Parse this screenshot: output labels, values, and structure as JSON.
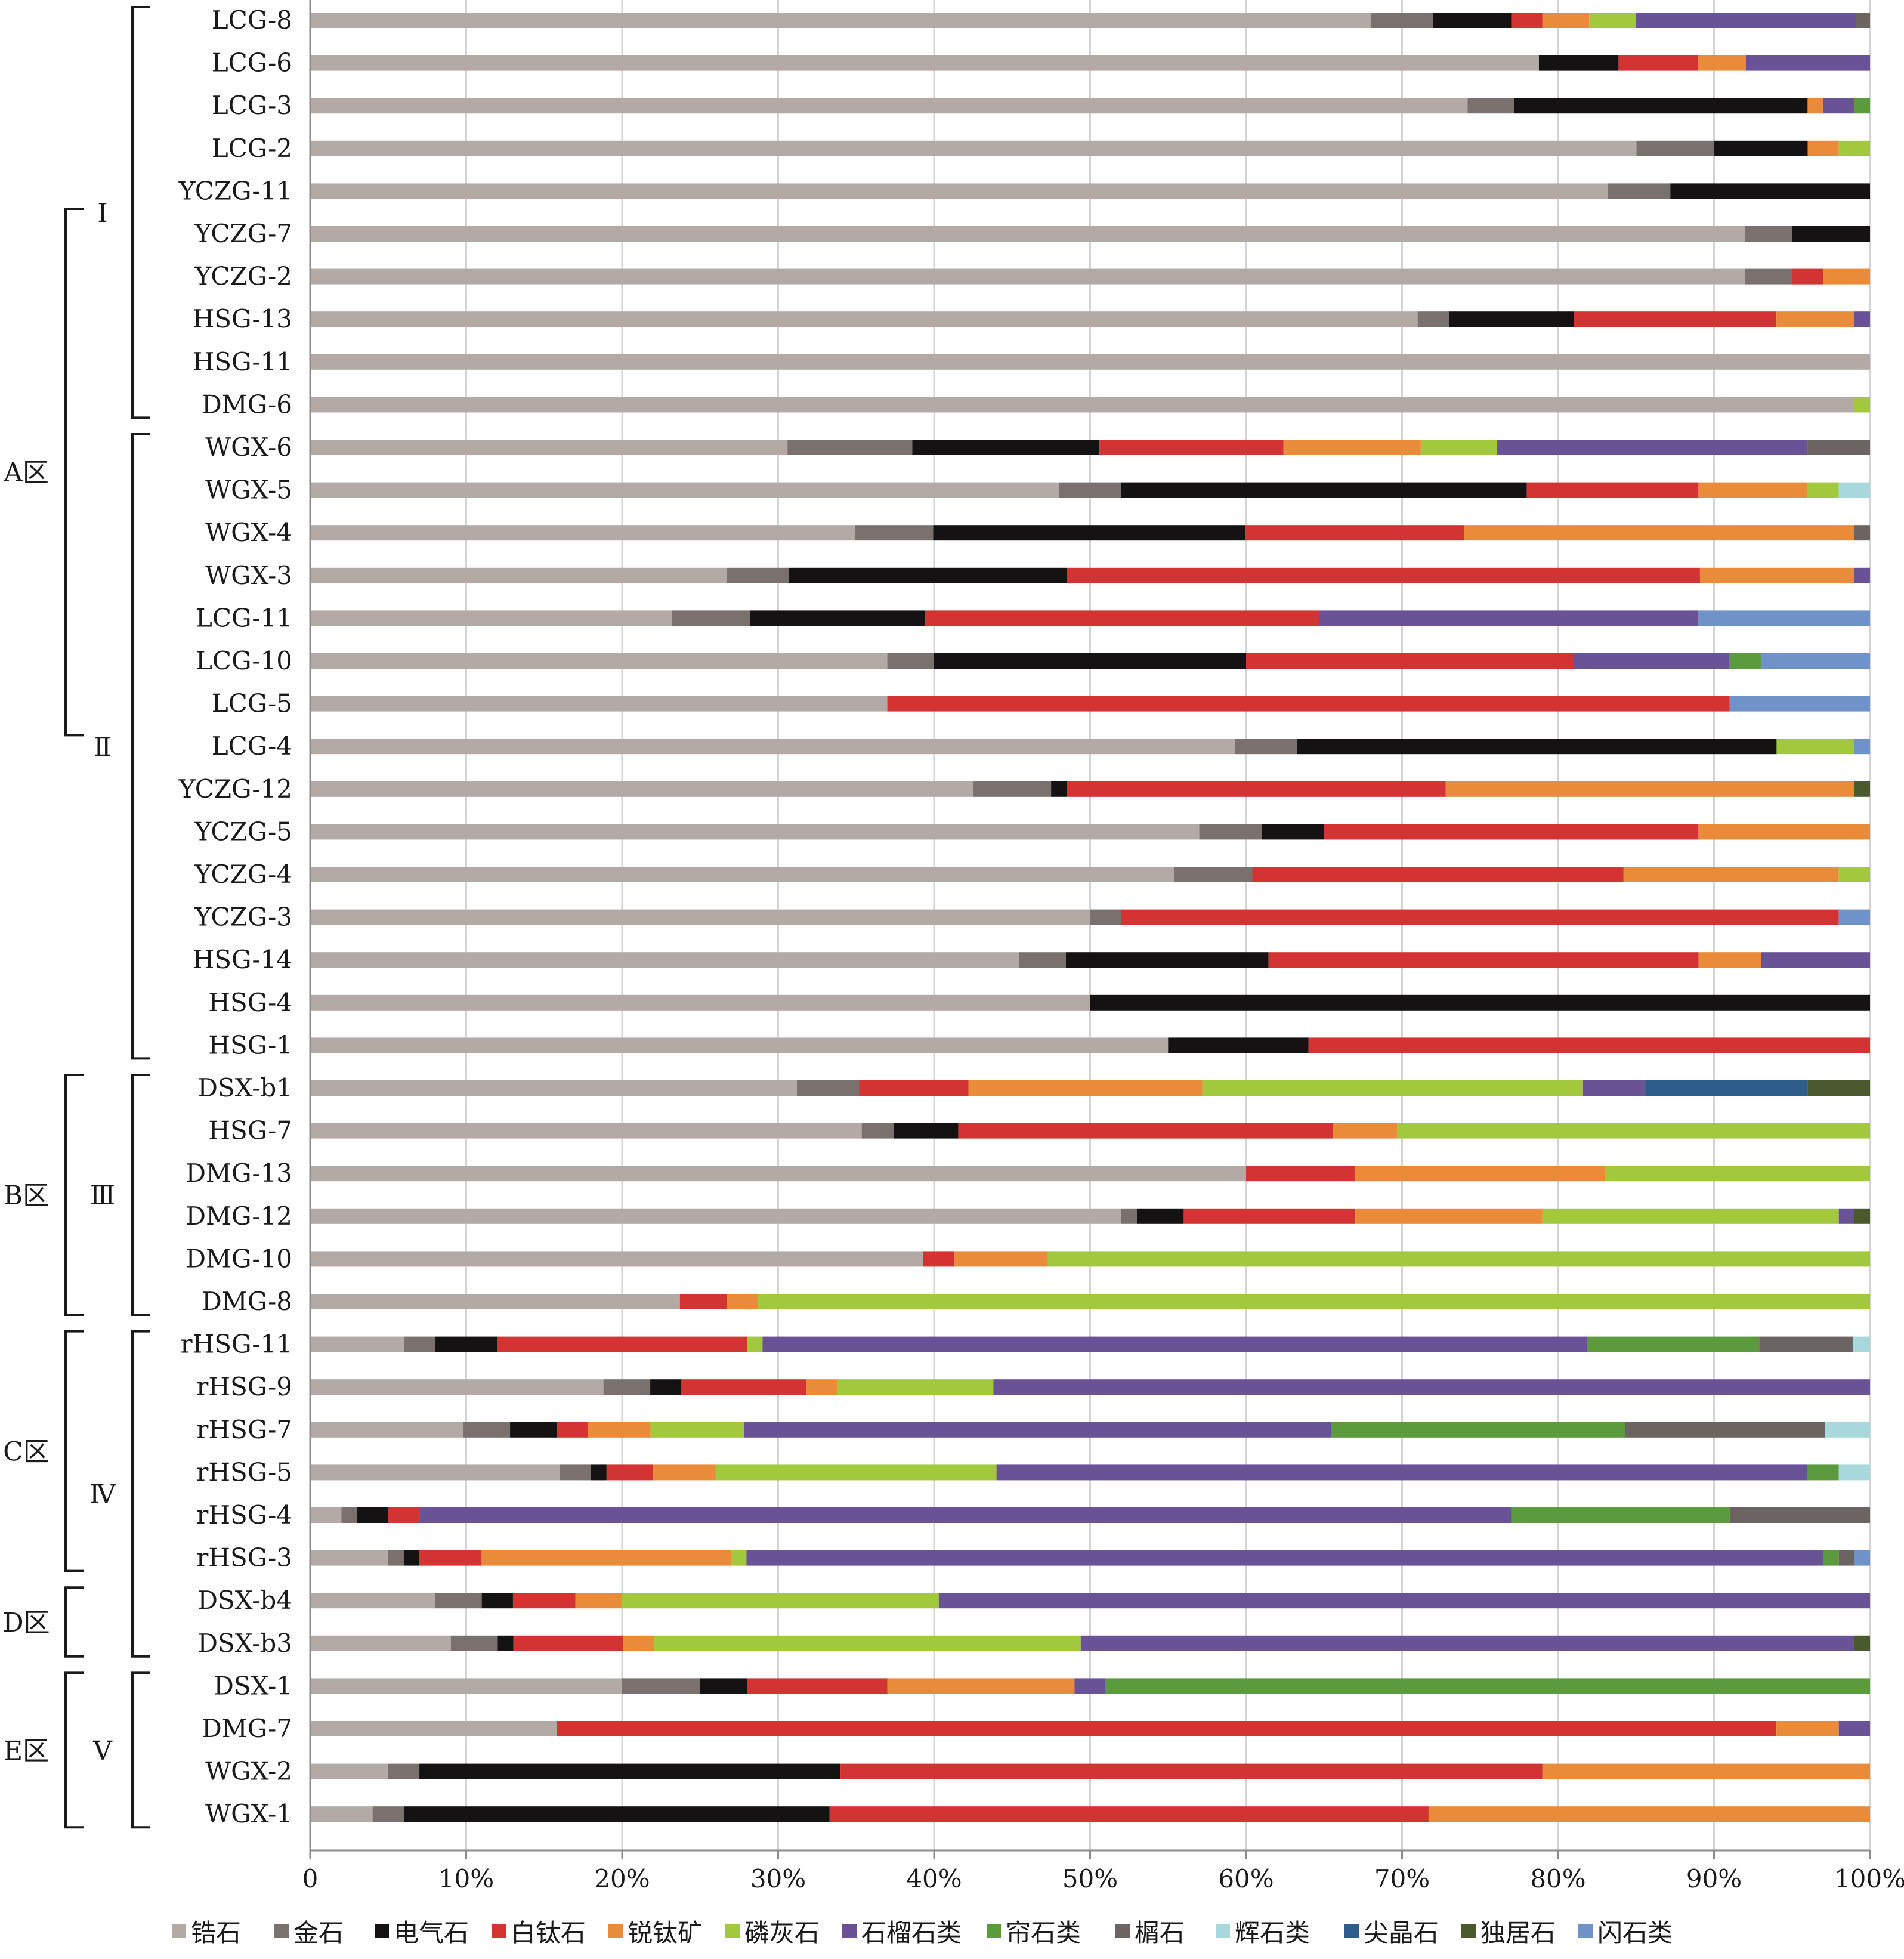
{
  "chart_data": {
    "type": "bar",
    "orientation": "horizontal",
    "stacked": "percent",
    "categories": [
      "LCG-8",
      "LCG-6",
      "LCG-3",
      "LCG-2",
      "YCZG-11",
      "YCZG-7",
      "YCZG-2",
      "HSG-13",
      "HSG-11",
      "DMG-6",
      "WGX-6",
      "WGX-5",
      "WGX-4",
      "WGX-3",
      "LCG-11",
      "LCG-10",
      "LCG-5",
      "LCG-4",
      "YCZG-12",
      "YCZG-5",
      "YCZG-4",
      "YCZG-3",
      "HSG-14",
      "HSG-4",
      "HSG-1",
      "DSX-b1",
      "HSG-7",
      "DMG-13",
      "DMG-12",
      "DMG-10",
      "DMG-8",
      "rHSG-11",
      "rHSG-9",
      "rHSG-7",
      "rHSG-5",
      "rHSG-4",
      "rHSG-3",
      "DSX-b4",
      "DSX-b3",
      "DSX-1",
      "DMG-7",
      "WGX-2",
      "WGX-1"
    ],
    "xlim": [
      0,
      100
    ],
    "xticks": [
      "0",
      "10%",
      "20%",
      "30%",
      "40%",
      "50%",
      "60%",
      "70%",
      "80%",
      "90%",
      "100%"
    ],
    "grid": "vertical",
    "legend_position": "bottom",
    "series": [
      {
        "name": "锆石",
        "color": "#b3aaa6",
        "values": [
          68,
          77.2,
          74.2,
          85.2,
          83.2,
          92,
          92,
          71,
          100,
          99,
          30.6,
          48,
          34.9,
          26.7,
          23.2,
          37,
          37,
          59.4,
          42.5,
          57,
          55.4,
          50,
          45.5,
          50,
          55,
          31.2,
          34.3,
          60,
          52,
          39.3,
          23.7,
          6,
          18.8,
          9.8,
          16,
          2,
          5,
          8,
          9,
          20,
          15.8,
          5,
          4
        ]
      },
      {
        "name": "金石",
        "color": "#7a706d",
        "values": [
          4,
          0,
          3,
          5,
          4,
          3,
          3,
          2,
          0,
          0,
          8,
          4,
          5,
          4,
          5,
          3,
          0,
          4,
          5,
          4,
          5,
          2,
          3,
          0,
          0,
          4,
          2,
          0,
          1,
          0,
          0,
          2,
          3,
          3,
          2,
          1,
          1,
          3,
          3,
          5,
          0,
          2,
          2
        ]
      },
      {
        "name": "电气石",
        "color": "#141212",
        "values": [
          5,
          5,
          18.8,
          6,
          12.8,
          5,
          0,
          8,
          0,
          0,
          12,
          26,
          20,
          17.8,
          11.2,
          20,
          0,
          30.8,
          1,
          4,
          0,
          0,
          13,
          50,
          9,
          0,
          4,
          0,
          3,
          0,
          0,
          4,
          2,
          3,
          1,
          2,
          1,
          2,
          1,
          3,
          0,
          27,
          27.3
        ]
      },
      {
        "name": "白钛石",
        "color": "#d33332",
        "values": [
          2,
          5,
          0,
          0,
          0,
          0,
          2,
          13,
          0,
          0,
          11.8,
          11,
          14,
          40.6,
          25.3,
          21,
          54,
          0,
          24.3,
          24,
          23.8,
          46,
          27.6,
          0,
          36,
          7,
          23.3,
          7,
          11,
          2,
          3,
          16,
          8,
          2,
          3,
          2,
          4,
          4,
          7,
          9,
          78.2,
          45,
          38.4
        ]
      },
      {
        "name": "锐钛矿",
        "color": "#e98b39",
        "values": [
          3,
          3,
          1,
          2,
          0,
          0,
          3,
          5,
          0,
          0,
          8.8,
          7,
          25,
          9.9,
          0,
          0,
          0,
          0,
          26.2,
          11,
          13.8,
          0,
          4,
          0,
          0,
          15,
          4,
          16,
          12,
          6,
          2,
          0,
          2,
          4,
          4,
          0,
          16,
          3,
          2,
          12,
          4,
          21,
          28.3
        ]
      },
      {
        "name": "磷灰石",
        "color": "#a2c83d",
        "values": [
          3,
          0,
          0,
          2,
          0,
          0,
          0,
          0,
          0,
          1,
          4.9,
          2,
          0,
          0,
          0,
          0,
          0,
          5,
          0,
          0,
          2,
          0,
          0,
          0,
          0,
          24.4,
          29.4,
          17,
          19,
          52.7,
          71.3,
          1,
          10,
          6,
          18,
          0,
          1,
          20.3,
          27.3,
          0,
          0,
          0,
          0
        ]
      },
      {
        "name": "石榴石类",
        "color": "#6a5297",
        "values": [
          14.1,
          7.8,
          2,
          0,
          0,
          0,
          0,
          1,
          0,
          0,
          19.9,
          0,
          0,
          1,
          24.3,
          10,
          0,
          0,
          0,
          0,
          0,
          0,
          7,
          0,
          0,
          4,
          0,
          0,
          1,
          0,
          0,
          52.9,
          56.2,
          37.6,
          52,
          70,
          69.1,
          59.7,
          49.5,
          2,
          2,
          0,
          0
        ]
      },
      {
        "name": "帘石类",
        "color": "#5b9a3d",
        "values": [
          0,
          0,
          1,
          0,
          0,
          0,
          0,
          0,
          0,
          0,
          0,
          0,
          0,
          0,
          0,
          2,
          0,
          0,
          0,
          0,
          0,
          0,
          0,
          0,
          0,
          0,
          0,
          0,
          0,
          0,
          0,
          11,
          0,
          18.8,
          2,
          14,
          1,
          0,
          0,
          49,
          0,
          0,
          0
        ]
      },
      {
        "name": "榍石",
        "color": "#6b6462",
        "values": [
          0.9,
          0,
          0,
          0,
          0,
          0,
          0,
          0,
          0,
          0,
          4,
          0,
          1,
          0,
          0,
          0,
          0,
          0,
          0,
          0,
          0,
          0,
          0,
          0,
          0,
          0,
          0,
          0,
          0,
          0,
          0,
          6,
          0,
          12.8,
          0,
          9,
          1,
          0,
          0,
          0,
          0,
          0,
          0
        ]
      },
      {
        "name": "辉石类",
        "color": "#a8d8dc",
        "values": [
          0,
          0,
          0,
          0,
          0,
          0,
          0,
          0,
          0,
          0,
          0,
          2,
          0,
          0,
          0,
          0,
          0,
          0,
          0,
          0,
          0,
          0,
          0,
          0,
          0,
          0,
          0,
          0,
          0,
          0,
          0,
          1.1,
          0,
          2.9,
          2,
          0,
          0,
          0,
          0,
          0,
          0,
          0,
          0
        ]
      },
      {
        "name": "尖晶石",
        "color": "#2e5d8c",
        "values": [
          0,
          0,
          0,
          0,
          0,
          0,
          0,
          0,
          0,
          0,
          0,
          0,
          0,
          0,
          0,
          0,
          0,
          0,
          0,
          0,
          0,
          0,
          0,
          0,
          0,
          10.4,
          0,
          0,
          0,
          0,
          0,
          0,
          0,
          0,
          0,
          0,
          0,
          0,
          0,
          0,
          0,
          0,
          0
        ]
      },
      {
        "name": "独居石",
        "color": "#4a5a2e",
        "values": [
          0,
          0,
          0,
          0,
          0,
          0,
          0,
          0,
          0,
          0,
          0,
          0,
          0,
          0,
          0,
          0,
          0,
          0,
          1,
          0,
          0,
          0,
          0,
          0,
          0,
          4,
          0,
          0,
          1,
          0,
          0,
          0,
          0,
          0,
          0,
          0,
          0,
          0,
          1,
          0,
          0,
          0,
          0
        ]
      },
      {
        "name": "闪石类",
        "color": "#6f92c9",
        "values": [
          0,
          0,
          0,
          0,
          0,
          0,
          0,
          0,
          0,
          0,
          0,
          0,
          0,
          0,
          11,
          7,
          9,
          1,
          0,
          0,
          0,
          2,
          0,
          0,
          0,
          0,
          0,
          0,
          0,
          0,
          0,
          0,
          0,
          0,
          0,
          0,
          1,
          0,
          0,
          0,
          0,
          0,
          0
        ]
      }
    ],
    "zones": [
      {
        "label": "A区",
        "from": 0,
        "to": 24
      },
      {
        "label": "B区",
        "from": 25,
        "to": 30
      },
      {
        "label": "C区",
        "from": 31,
        "to": 36
      },
      {
        "label": "D区",
        "from": 37,
        "to": 38
      },
      {
        "label": "E区",
        "from": 39,
        "to": 42
      }
    ],
    "groups": [
      {
        "label": "Ⅰ",
        "from": 0,
        "to": 9
      },
      {
        "label": "Ⅱ",
        "from": 10,
        "to": 24
      },
      {
        "label": "Ⅲ",
        "from": 25,
        "to": 30
      },
      {
        "label": "Ⅳ",
        "from": 31,
        "to": 38
      },
      {
        "label": "Ⅴ",
        "from": 39,
        "to": 42
      }
    ]
  }
}
